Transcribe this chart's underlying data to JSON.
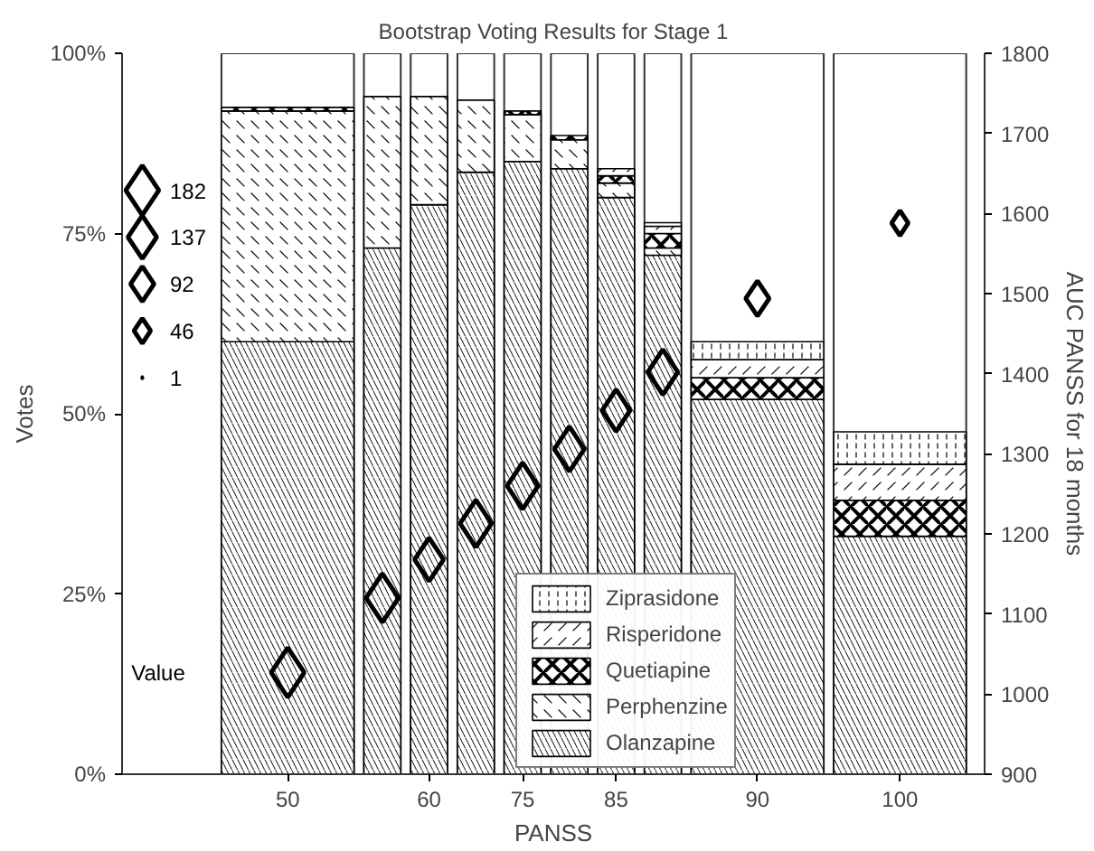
{
  "chart_data": {
    "type": "bar",
    "title": "Bootstrap Voting Results for Stage 1",
    "xlabel": "PANSS",
    "ylabel": "Votes",
    "y2label": "AUC PANSS for 18 months",
    "categories": [
      "50",
      null,
      "60",
      null,
      "75",
      null,
      "85",
      null,
      "90",
      "100"
    ],
    "stacked": true,
    "series": [
      {
        "name": "Olanzapine",
        "color": "#ffffff",
        "values": [
          60,
          73,
          79,
          83.5,
          85,
          84,
          80,
          72,
          52,
          33
        ]
      },
      {
        "name": "Perphenzine",
        "color": "#ffffff",
        "values": [
          32,
          21,
          15,
          10,
          6.5,
          4,
          2,
          1,
          0,
          0
        ]
      },
      {
        "name": "Quetiapine",
        "color": "#ffffff",
        "values": [
          0.5,
          0,
          0,
          0,
          0.5,
          0.6,
          1,
          2,
          3,
          5
        ]
      },
      {
        "name": "Risperidone",
        "color": "#ffffff",
        "values": [
          0,
          0,
          0,
          0,
          0,
          null,
          1,
          1,
          2.5,
          5
        ]
      },
      {
        "name": "Ziprasidone",
        "color": "#ffffff",
        "values": [
          0,
          0,
          0,
          0,
          0,
          0,
          0,
          0.5,
          2.5,
          4.5
        ]
      },
      {
        "type": "bubble",
        "axis": "y2",
        "color": "#000000",
        "values": [
          1027,
          1120,
          1168,
          1213,
          1260,
          1306,
          1354,
          1402,
          1494,
          1588
        ],
        "sizes": [
          182,
          175,
          140,
          165,
          160,
          150,
          130,
          150,
          92,
          46
        ]
      }
    ],
    "size_legend": [
      182,
      137,
      92,
      46,
      1
    ],
    "legend_title": "Value",
    "ylim": [
      0,
      100
    ],
    "yticks": [
      {
        "value": 0,
        "label": "0%"
      },
      {
        "value": 25,
        "label": "25%"
      },
      {
        "value": 50,
        "label": "50%"
      },
      {
        "value": 75,
        "label": "75%"
      },
      {
        "value": 100,
        "label": "100%"
      }
    ],
    "y2lim": [
      900,
      1800
    ],
    "y2ticks": [
      900,
      1000,
      1100,
      1200,
      1300,
      1400,
      1500,
      1600,
      1700,
      1800
    ],
    "legend": "bottom right",
    "grid": false
  }
}
